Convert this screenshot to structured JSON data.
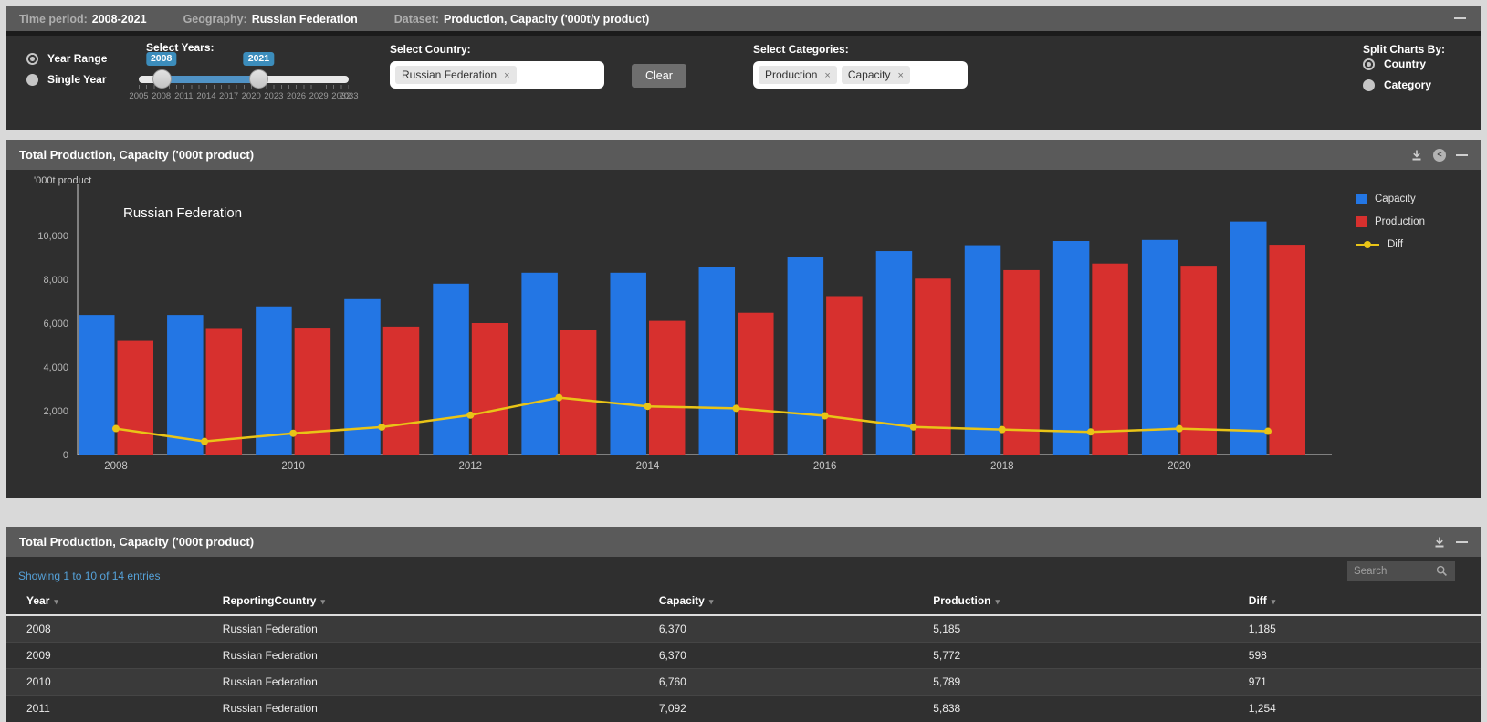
{
  "top_bar": {
    "time_period_label": "Time period:",
    "time_period_value": "2008-2021",
    "geography_label": "Geography:",
    "geography_value": "Russian Federation",
    "dataset_label": "Dataset:",
    "dataset_value": "Production, Capacity ('000t/y product)"
  },
  "filters": {
    "year_mode": {
      "options": [
        {
          "label": "Year Range",
          "selected": true
        },
        {
          "label": "Single Year",
          "selected": false
        }
      ]
    },
    "select_years": {
      "label": "Select Years:",
      "from": "2008",
      "to": "2021",
      "axis_min": 2005,
      "axis_max": 2033,
      "tick_labels": [
        "2005",
        "2008",
        "2011",
        "2014",
        "2017",
        "2020",
        "2023",
        "2026",
        "2029",
        "2032",
        "2033"
      ]
    },
    "select_country": {
      "label": "Select Country:",
      "tags": [
        "Russian Federation"
      ],
      "remove_icon": "×"
    },
    "clear_button_label": "Clear",
    "select_categories": {
      "label": "Select Categories:",
      "tags": [
        "Production",
        "Capacity"
      ],
      "remove_icon": "×"
    },
    "split_charts_by": {
      "label": "Split Charts By:",
      "options": [
        {
          "label": "Country",
          "selected": true
        },
        {
          "label": "Category",
          "selected": false
        }
      ]
    }
  },
  "chart_panel": {
    "title": "Total Production, Capacity ('000t product)",
    "y_axis_title": "'000t product",
    "inner_title": "Russian Federation"
  },
  "chart_data": {
    "type": "bar",
    "title": "Russian Federation",
    "ylabel": "'000t product",
    "ylim": [
      0,
      11600
    ],
    "yticks": [
      0,
      2000,
      4000,
      6000,
      8000,
      10000
    ],
    "x_tick_labels": [
      "2008",
      "2010",
      "2012",
      "2014",
      "2016",
      "2018",
      "2020"
    ],
    "categories": [
      "2008",
      "2009",
      "2010",
      "2011",
      "2012",
      "2013",
      "2014",
      "2015",
      "2016",
      "2017",
      "2018",
      "2019",
      "2020",
      "2021"
    ],
    "series": [
      {
        "name": "Capacity",
        "type": "bar",
        "color": "#2376e4",
        "values": [
          6370,
          6370,
          6760,
          7092,
          7800,
          8300,
          8300,
          8580,
          9000,
          9290,
          9560,
          9750,
          9800,
          10640
        ]
      },
      {
        "name": "Production",
        "type": "bar",
        "color": "#d7302e",
        "values": [
          5185,
          5772,
          5789,
          5838,
          6000,
          5700,
          6100,
          6470,
          7230,
          8030,
          8420,
          8720,
          8620,
          9580
        ]
      },
      {
        "name": "Diff",
        "type": "line",
        "color": "#e9c417",
        "values": [
          1185,
          598,
          971,
          1254,
          1800,
          2600,
          2200,
          2110,
          1770,
          1260,
          1140,
          1030,
          1180,
          1060
        ]
      }
    ],
    "legend_position": "right",
    "grid": false
  },
  "table_panel": {
    "title": "Total Production, Capacity ('000t product)",
    "info": "Showing 1 to 10 of 14 entries",
    "search_placeholder": "Search",
    "columns": [
      "Year",
      "ReportingCountry",
      "Capacity",
      "Production",
      "Diff"
    ],
    "rows": [
      [
        "2008",
        "Russian Federation",
        "6,370",
        "5,185",
        "1,185"
      ],
      [
        "2009",
        "Russian Federation",
        "6,370",
        "5,772",
        "598"
      ],
      [
        "2010",
        "Russian Federation",
        "6,760",
        "5,789",
        "971"
      ],
      [
        "2011",
        "Russian Federation",
        "7,092",
        "5,838",
        "1,254"
      ]
    ]
  },
  "colors": {
    "capacity_blue": "#2376e4",
    "production_red": "#d7302e",
    "diff_yellow": "#e9c417",
    "slider_blue": "#3c8dbc",
    "info_link_blue": "#55a1d8",
    "panel_header_gray": "#5a5a5a",
    "panel_body_dark": "#2f2f2f",
    "page_background": "#d9d9d9"
  }
}
